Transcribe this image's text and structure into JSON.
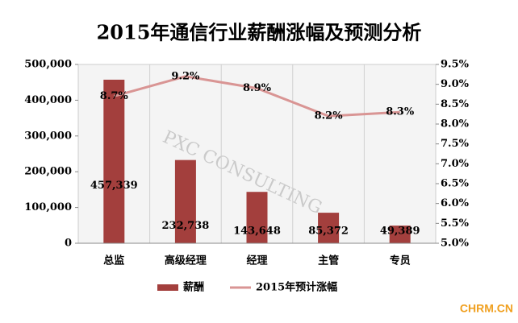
{
  "chart_data": {
    "type": "bar_line",
    "title": "2015年通信行业薪酬涨幅及预测分析",
    "watermark": "PXC CONSULTING",
    "brand": "CHRM.CN",
    "categories": [
      "总监",
      "高级经理",
      "经理",
      "主管",
      "专员"
    ],
    "series": [
      {
        "name": "薪酬",
        "type": "bar",
        "color": "#a33f3d",
        "values": [
          457339,
          232738,
          143648,
          85372,
          49389
        ],
        "value_labels": [
          "457,339",
          "232,738",
          "143,648",
          "85,372",
          "49,389"
        ]
      },
      {
        "name": "2015年预计涨幅",
        "type": "line",
        "axis": "y2",
        "color": "#d99594",
        "values": [
          8.7,
          9.2,
          8.9,
          8.2,
          8.3
        ],
        "value_labels": [
          "8.7%",
          "9.2%",
          "8.9%",
          "8.2%",
          "8.3%"
        ]
      }
    ],
    "ylim": [
      0,
      500000
    ],
    "yticks": [
      0,
      {
        "value": 100000,
        "label": "100,000"
      },
      {
        "value": 200000,
        "label": "200,000"
      },
      {
        "value": 300000,
        "label": "300,000"
      },
      {
        "value": 400000,
        "label": "400,000"
      },
      {
        "value": 500000,
        "label": "500,000"
      }
    ],
    "y2lim": [
      5.0,
      9.5
    ],
    "y2ticks": [
      {
        "value": 5.0,
        "label": "5.0%"
      },
      {
        "value": 5.5,
        "label": "5.5%"
      },
      {
        "value": 6.0,
        "label": "6.0%"
      },
      {
        "value": 6.5,
        "label": "6.5%"
      },
      {
        "value": 7.0,
        "label": "7.0%"
      },
      {
        "value": 7.5,
        "label": "7.5%"
      },
      {
        "value": 8.0,
        "label": "8.0%"
      },
      {
        "value": 8.5,
        "label": "8.5%"
      },
      {
        "value": 9.0,
        "label": "9.0%"
      },
      {
        "value": 9.5,
        "label": "9.5%"
      }
    ],
    "grid": true,
    "legend": "bottom"
  }
}
